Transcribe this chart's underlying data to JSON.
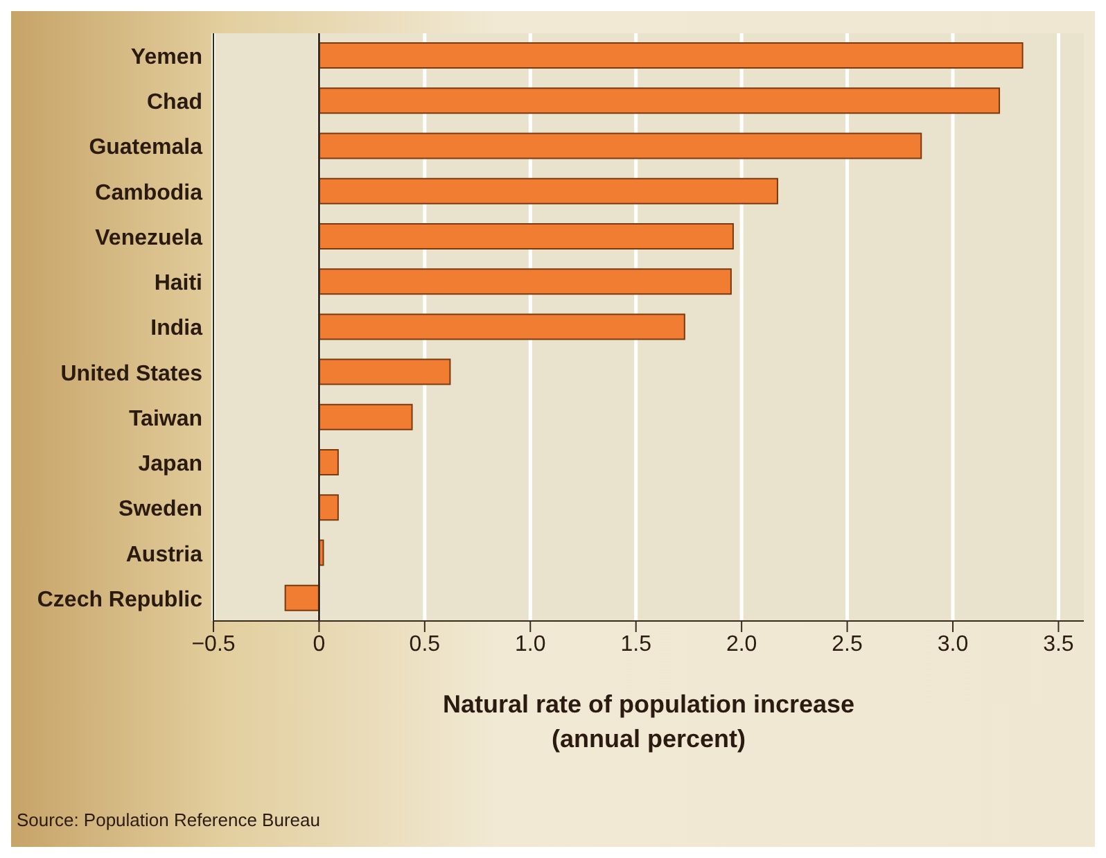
{
  "chart_data": {
    "type": "bar",
    "orientation": "horizontal",
    "categories": [
      "Yemen",
      "Chad",
      "Guatemala",
      "Cambodia",
      "Venezuela",
      "Haiti",
      "India",
      "United States",
      "Taiwan",
      "Japan",
      "Sweden",
      "Austria",
      "Czech Republic"
    ],
    "values": [
      3.33,
      3.22,
      2.85,
      2.17,
      1.96,
      1.95,
      1.73,
      0.62,
      0.44,
      0.09,
      0.09,
      0.02,
      -0.16
    ],
    "color": "#f07d32",
    "xlabel": "Natural rate of population increase\n(annual percent)",
    "xlim": [
      -0.5,
      3.62
    ],
    "xticks": [
      {
        "value": -0.5,
        "label": "−0.5"
      },
      0,
      0.5,
      {
        "value": 1,
        "label": "1.0"
      },
      1.5,
      {
        "value": 2,
        "label": "2.0"
      },
      2.5,
      {
        "value": 3,
        "label": "3.0"
      },
      3.5
    ],
    "grid": "x",
    "annotations": [
      "Source:  Population Reference Bureau"
    ]
  }
}
